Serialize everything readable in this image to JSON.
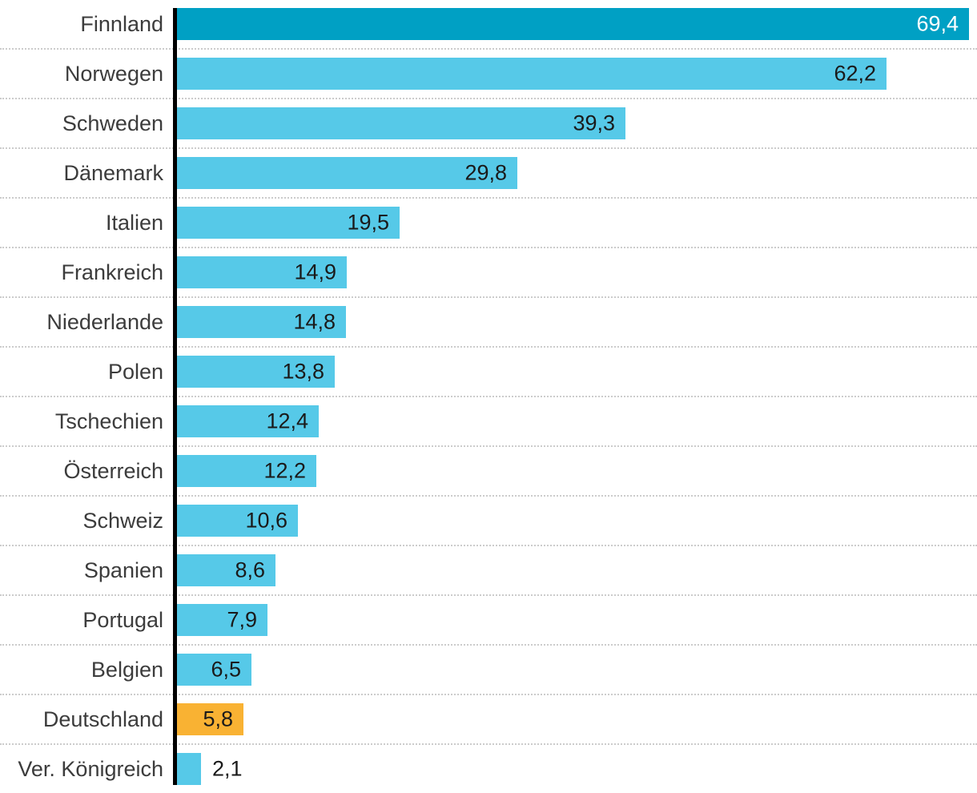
{
  "chart_data": {
    "type": "bar",
    "orientation": "horizontal",
    "title": "",
    "xlabel": "",
    "ylabel": "",
    "legend": "none",
    "grid": "dotted horizontal row separators",
    "xlim": [
      0,
      69.4
    ],
    "categories": [
      "Finnland",
      "Norwegen",
      "Schweden",
      "Dänemark",
      "Italien",
      "Frankreich",
      "Niederlande",
      "Polen",
      "Tschechien",
      "Österreich",
      "Schweiz",
      "Spanien",
      "Portugal",
      "Belgien",
      "Deutschland",
      "Ver. Königreich"
    ],
    "values": [
      69.4,
      62.2,
      39.3,
      29.8,
      19.5,
      14.9,
      14.8,
      13.8,
      12.4,
      12.2,
      10.6,
      8.6,
      7.9,
      6.5,
      5.8,
      2.1
    ],
    "value_labels": [
      "69,4",
      "62,2",
      "39,3",
      "29,8",
      "19,5",
      "14,9",
      "14,8",
      "13,8",
      "12,4",
      "12,2",
      "10,6",
      "8,6",
      "7,9",
      "6,5",
      "5,8",
      "2,1"
    ],
    "bars": [
      {
        "category": "Finnland",
        "value": 69.4,
        "display": "69,4",
        "color": "top",
        "value_position": "inside",
        "value_style": "light"
      },
      {
        "category": "Norwegen",
        "value": 62.2,
        "display": "62,2",
        "color": "default",
        "value_position": "inside",
        "value_style": "dark"
      },
      {
        "category": "Schweden",
        "value": 39.3,
        "display": "39,3",
        "color": "default",
        "value_position": "inside",
        "value_style": "dark"
      },
      {
        "category": "Dänemark",
        "value": 29.8,
        "display": "29,8",
        "color": "default",
        "value_position": "inside",
        "value_style": "dark"
      },
      {
        "category": "Italien",
        "value": 19.5,
        "display": "19,5",
        "color": "default",
        "value_position": "inside",
        "value_style": "dark"
      },
      {
        "category": "Frankreich",
        "value": 14.9,
        "display": "14,9",
        "color": "default",
        "value_position": "inside",
        "value_style": "dark"
      },
      {
        "category": "Niederlande",
        "value": 14.8,
        "display": "14,8",
        "color": "default",
        "value_position": "inside",
        "value_style": "dark"
      },
      {
        "category": "Polen",
        "value": 13.8,
        "display": "13,8",
        "color": "default",
        "value_position": "inside",
        "value_style": "dark"
      },
      {
        "category": "Tschechien",
        "value": 12.4,
        "display": "12,4",
        "color": "default",
        "value_position": "inside",
        "value_style": "dark"
      },
      {
        "category": "Österreich",
        "value": 12.2,
        "display": "12,2",
        "color": "default",
        "value_position": "inside",
        "value_style": "dark"
      },
      {
        "category": "Schweiz",
        "value": 10.6,
        "display": "10,6",
        "color": "default",
        "value_position": "inside",
        "value_style": "dark"
      },
      {
        "category": "Spanien",
        "value": 8.6,
        "display": "8,6",
        "color": "default",
        "value_position": "inside",
        "value_style": "dark"
      },
      {
        "category": "Portugal",
        "value": 7.9,
        "display": "7,9",
        "color": "default",
        "value_position": "inside",
        "value_style": "dark"
      },
      {
        "category": "Belgien",
        "value": 6.5,
        "display": "6,5",
        "color": "default",
        "value_position": "inside",
        "value_style": "dark"
      },
      {
        "category": "Deutschland",
        "value": 5.8,
        "display": "5,8",
        "color": "highlight",
        "value_position": "inside",
        "value_style": "dark"
      },
      {
        "category": "Ver. Königreich",
        "value": 2.1,
        "display": "2,1",
        "color": "default",
        "value_position": "outside",
        "value_style": "dark"
      }
    ]
  },
  "style": {
    "bar_default": "#56C9E8",
    "bar_top": "#00A0C4",
    "bar_highlight": "#F9B233",
    "axis_color": "#000000",
    "grid_color": "#CCCCCC",
    "category_label_color": "#3C3C3C",
    "value_label_color": "#1A1A1A",
    "value_label_color_on_dark": "#FFFFFF",
    "background": "#FFFFFF"
  }
}
